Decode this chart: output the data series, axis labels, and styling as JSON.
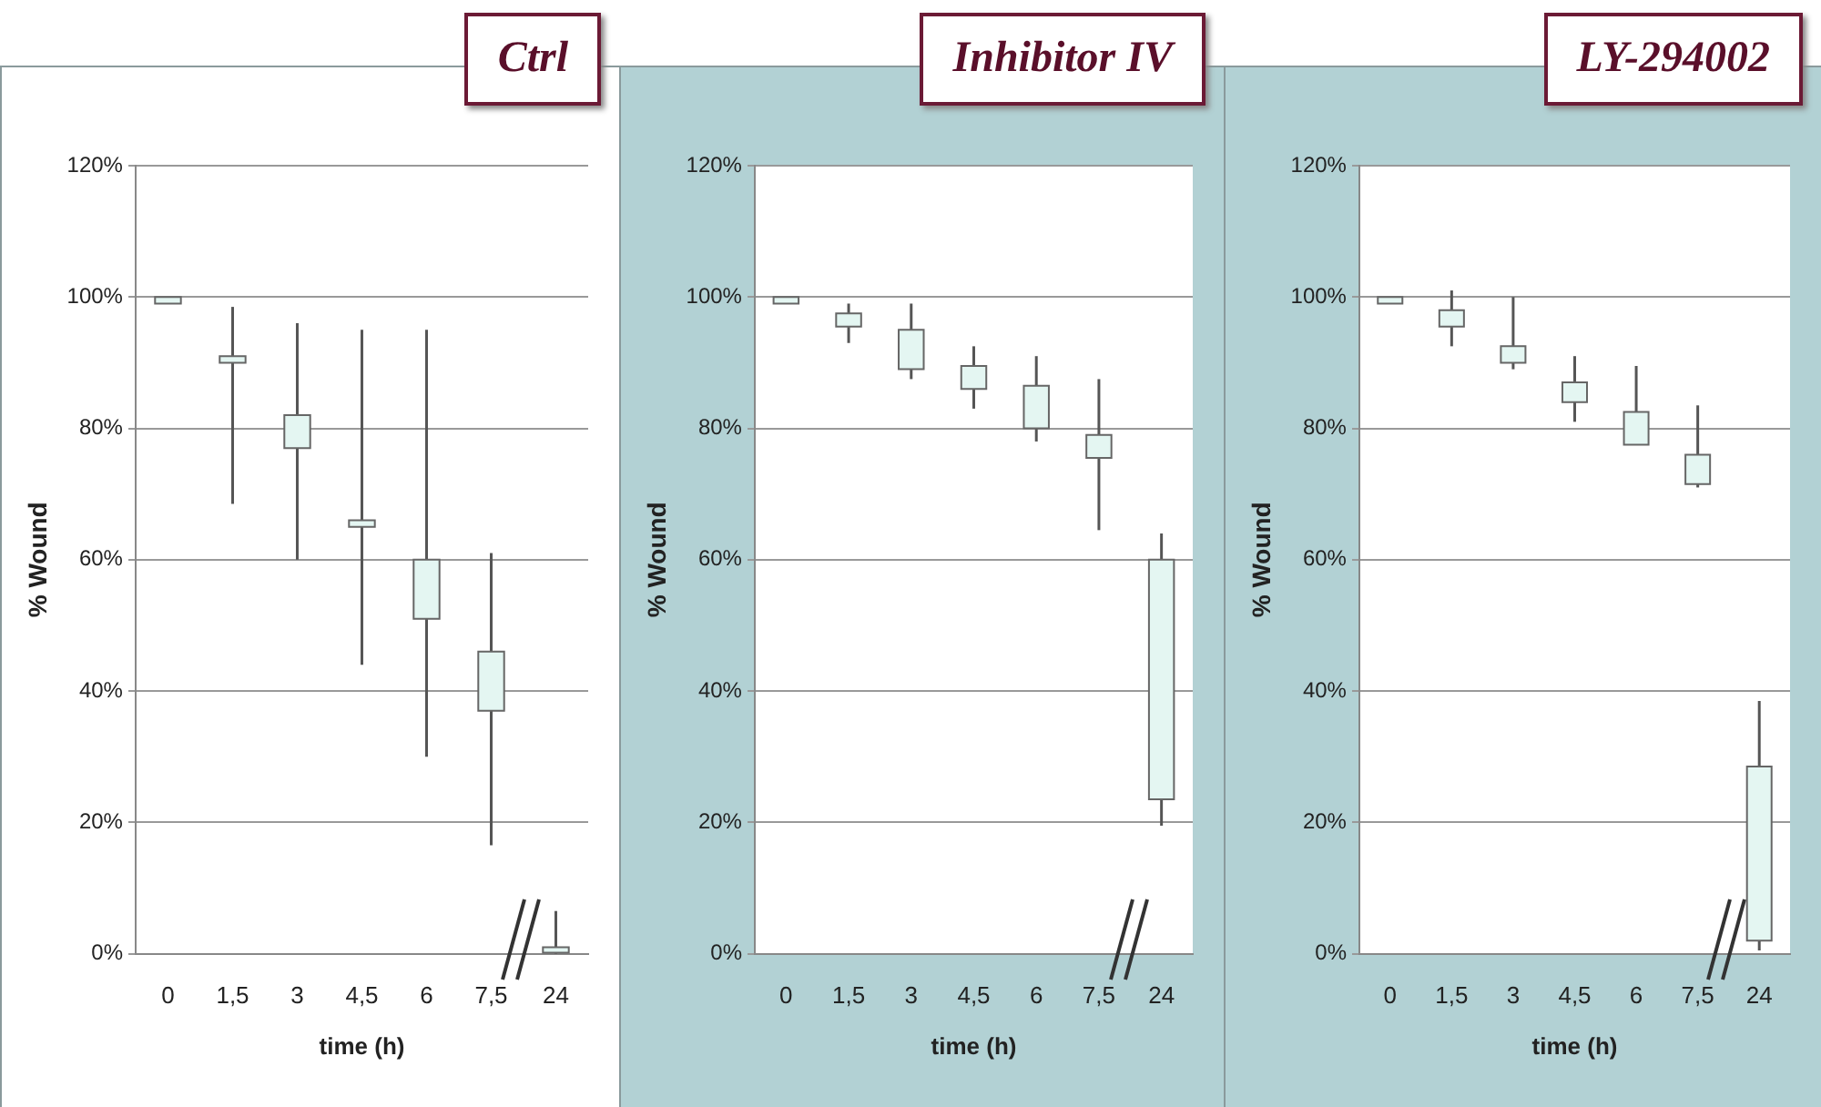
{
  "chart_data": [
    {
      "type": "candlestick",
      "title": "Ctrl",
      "xlabel": "time (h)",
      "ylabel": "% Wound",
      "categories": [
        "0",
        "1,5",
        "3",
        "4,5",
        "6",
        "7,5",
        "24"
      ],
      "ohlc": [
        [
          100,
          100,
          99,
          99
        ],
        [
          91,
          98.5,
          68.5,
          90
        ],
        [
          82,
          96,
          60,
          77
        ],
        [
          66,
          95,
          44,
          65
        ],
        [
          60,
          95,
          30,
          51
        ],
        [
          46,
          61,
          16.5,
          37
        ],
        [
          1,
          6.5,
          0,
          0
        ]
      ],
      "color": "#e4f6f2",
      "ylim": [
        0,
        120
      ],
      "yticks": [
        {
          "value": 0,
          "label": "0%"
        },
        {
          "value": 20,
          "label": "20%"
        },
        {
          "value": 40,
          "label": "40%"
        },
        {
          "value": 60,
          "label": "60%"
        },
        {
          "value": 80,
          "label": "80%"
        },
        {
          "value": 100,
          "label": "100%"
        },
        {
          "value": 120,
          "label": "120%"
        }
      ],
      "grid": "y"
    },
    {
      "type": "candlestick",
      "title": "Inhibitor IV",
      "xlabel": "time (h)",
      "ylabel": "% Wound",
      "categories": [
        "0",
        "1,5",
        "3",
        "4,5",
        "6",
        "7,5",
        "24"
      ],
      "ohlc": [
        [
          100,
          100,
          99,
          99
        ],
        [
          97.5,
          99,
          93,
          95.5
        ],
        [
          95,
          99,
          87.5,
          89
        ],
        [
          89.5,
          92.5,
          83,
          86
        ],
        [
          86.5,
          91,
          78,
          80
        ],
        [
          79,
          87.5,
          64.5,
          75.5
        ],
        [
          60,
          64,
          19.5,
          23.5
        ]
      ],
      "color": "#e4f6f2",
      "ylim": [
        0,
        120
      ],
      "yticks": [
        {
          "value": 0,
          "label": "0%"
        },
        {
          "value": 20,
          "label": "20%"
        },
        {
          "value": 40,
          "label": "40%"
        },
        {
          "value": 60,
          "label": "60%"
        },
        {
          "value": 80,
          "label": "80%"
        },
        {
          "value": 100,
          "label": "100%"
        },
        {
          "value": 120,
          "label": "120%"
        }
      ],
      "grid": "y"
    },
    {
      "type": "candlestick",
      "title": "LY-294002",
      "xlabel": "time (h)",
      "ylabel": "% Wound",
      "categories": [
        "0",
        "1,5",
        "3",
        "4,5",
        "6",
        "7,5",
        "24"
      ],
      "ohlc": [
        [
          100,
          100,
          99,
          99
        ],
        [
          98,
          101,
          92.5,
          95.5
        ],
        [
          92.5,
          100,
          89,
          90
        ],
        [
          87,
          91,
          81,
          84
        ],
        [
          82.5,
          89.5,
          77.5,
          77.5
        ],
        [
          76,
          83.5,
          71,
          71.5
        ],
        [
          28.5,
          38.5,
          0.5,
          2
        ]
      ],
      "color": "#e4f6f2",
      "ylim": [
        0,
        120
      ],
      "yticks": [
        {
          "value": 0,
          "label": "0%"
        },
        {
          "value": 20,
          "label": "20%"
        },
        {
          "value": 40,
          "label": "40%"
        },
        {
          "value": 60,
          "label": "60%"
        },
        {
          "value": 80,
          "label": "80%"
        },
        {
          "value": 100,
          "label": "100%"
        },
        {
          "value": 120,
          "label": "120%"
        }
      ],
      "grid": "y"
    }
  ]
}
